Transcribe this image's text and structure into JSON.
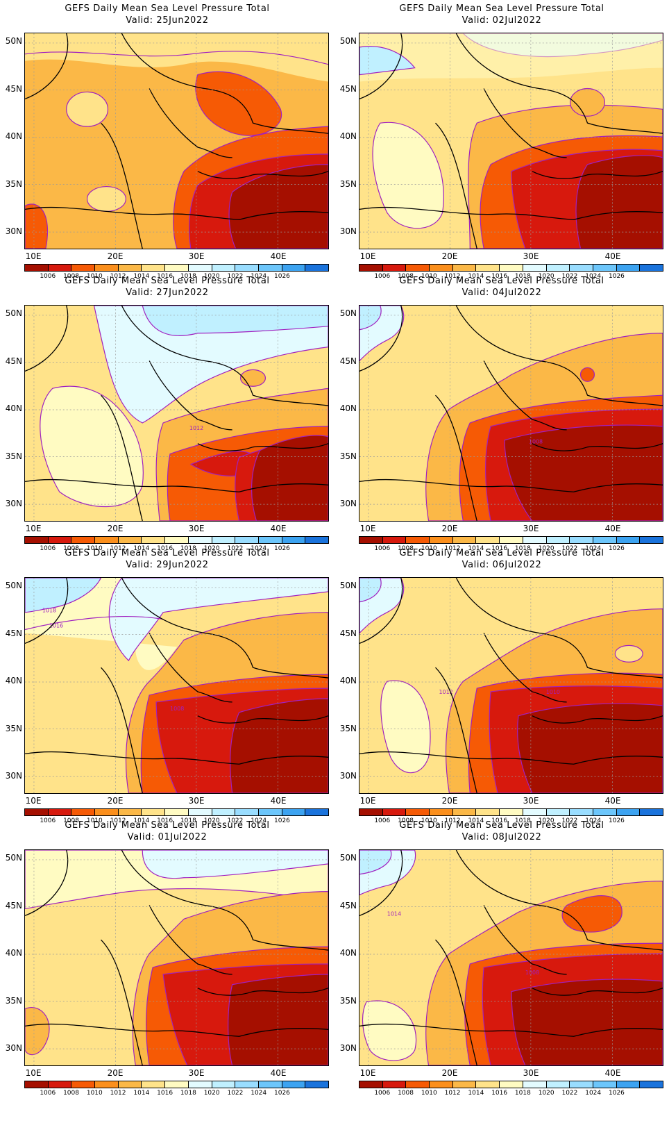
{
  "title": "GEFS Daily Mean Sea Level Pressure Total",
  "colorbar": {
    "labels": [
      "1006",
      "1008",
      "1010",
      "1012",
      "1014",
      "1016",
      "1018",
      "1020",
      "1022",
      "1024",
      "1026"
    ],
    "colors": [
      "#a50f00",
      "#d7190d",
      "#f65a05",
      "#fb8f1c",
      "#fbb847",
      "#ffe38a",
      "#fffbc2",
      "#e3fbff",
      "#c0f0ff",
      "#99ddff",
      "#6cc6fb",
      "#3ca3f1",
      "#1a73dc"
    ]
  },
  "axes": {
    "y_labels": [
      "50N",
      "45N",
      "40N",
      "35N",
      "30N"
    ],
    "x_labels": [
      "10E",
      "20E",
      "30E",
      "40E"
    ]
  },
  "panels": [
    {
      "id": "p1",
      "valid": "Valid: 25Jun2022",
      "contour_labels": []
    },
    {
      "id": "p2",
      "valid": "Valid: 02Jul2022",
      "contour_labels": []
    },
    {
      "id": "p3",
      "valid": "Valid: 27Jun2022",
      "contour_labels": [
        "1012"
      ]
    },
    {
      "id": "p4",
      "valid": "Valid: 04Jul2022",
      "contour_labels": [
        "1008"
      ]
    },
    {
      "id": "p5",
      "valid": "Valid: 29Jun2022",
      "contour_labels": [
        "1018",
        "1016",
        "1008"
      ]
    },
    {
      "id": "p6",
      "valid": "Valid: 06Jul2022",
      "contour_labels": [
        "1012",
        "1010"
      ]
    },
    {
      "id": "p7",
      "valid": "Valid: 01Jul2022",
      "contour_labels": []
    },
    {
      "id": "p8",
      "valid": "Valid: 08Jul2022",
      "contour_labels": [
        "1014",
        "1008"
      ]
    }
  ]
}
